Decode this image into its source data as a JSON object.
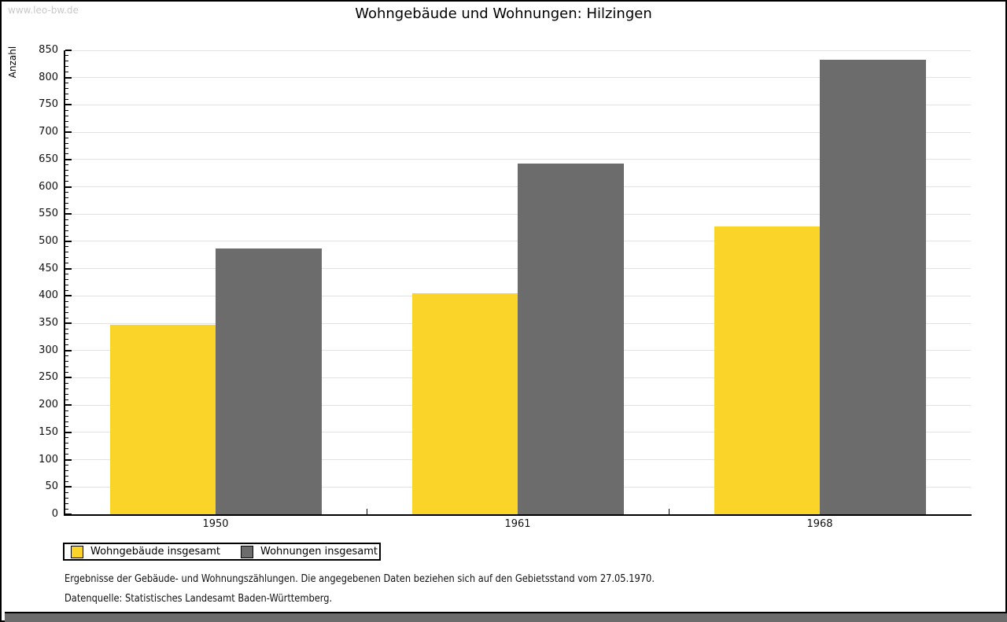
{
  "page": {
    "watermark": "www.leo-bw.de",
    "title": "Wohngebäude und Wohnungen: Hilzingen",
    "footnote_line1": "Ergebnisse der Gebäude- und Wohnungszählungen. Die angegebenen Daten beziehen sich auf den Gebietsstand vom 27.05.1970.",
    "footnote_line2": "Datenquelle: Statistisches Landesamt Baden-Württemberg."
  },
  "chart_data": {
    "type": "bar",
    "title": "Wohngebäude und Wohnungen: Hilzingen",
    "xlabel": "",
    "ylabel": "Anzahl",
    "categories": [
      "1950",
      "1961",
      "1968"
    ],
    "series": [
      {
        "name": "Wohngebäude insgesamt",
        "color": "#FBD42A",
        "values": [
          347,
          405,
          528
        ]
      },
      {
        "name": "Wohnungen insgesamt",
        "color": "#6C6C6C",
        "values": [
          487,
          643,
          833
        ]
      }
    ],
    "ylim": [
      0,
      850
    ],
    "ytick_step": 50,
    "yminor_step": 10,
    "grid": true,
    "legend_position": "bottom-left"
  },
  "colors": {
    "background": "#FFFFFF",
    "frame": "#000000",
    "axis": "#000000",
    "gridline": "#E2E2E2",
    "tick_label": "#111111",
    "watermark": "#C9C9C9",
    "bottom_bar": "#6C6C6C"
  }
}
